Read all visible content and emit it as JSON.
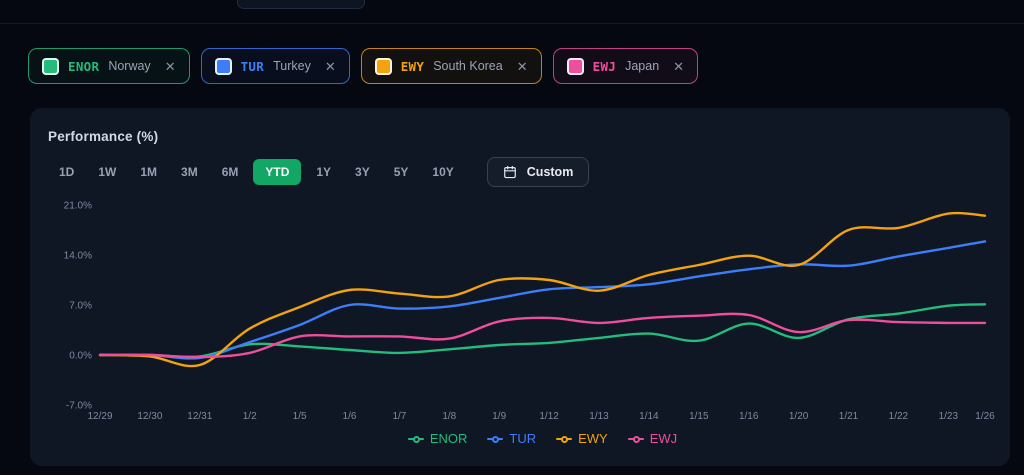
{
  "page": {
    "background": "#050810"
  },
  "topbar": {
    "partial_control_visible": true
  },
  "watchlist_chips": [
    {
      "ticker": "ENOR",
      "country": "Norway",
      "color": "#23BC7D",
      "close_label": "✕"
    },
    {
      "ticker": "TUR",
      "country": "Turkey",
      "color": "#3D7EF7",
      "close_label": "✕"
    },
    {
      "ticker": "EWY",
      "country": "South Korea",
      "color": "#F2A30D",
      "close_label": "✕"
    },
    {
      "ticker": "EWJ",
      "country": "Japan",
      "color": "#ED4F9C",
      "close_label": "✕"
    }
  ],
  "card": {
    "title": "Performance (%)",
    "ranges": [
      "1D",
      "1W",
      "1M",
      "3M",
      "6M",
      "YTD",
      "1Y",
      "3Y",
      "5Y",
      "10Y"
    ],
    "active_range": "YTD",
    "active_range_color": "#12A765",
    "custom_button": {
      "label": "Custom",
      "icon": "calendar-icon"
    }
  },
  "chart_data": {
    "type": "line",
    "title": "Performance (%)",
    "x": [
      "12/29",
      "12/30",
      "12/31",
      "1/2",
      "1/5",
      "1/6",
      "1/7",
      "1/8",
      "1/9",
      "1/12",
      "1/13",
      "1/14",
      "1/15",
      "1/16",
      "1/20",
      "1/21",
      "1/22",
      "1/23",
      "1/26"
    ],
    "series": [
      {
        "name": "ENOR",
        "color": "#23BC7D",
        "values": [
          0.0,
          0.0,
          -0.2,
          1.5,
          1.2,
          0.7,
          0.3,
          0.8,
          1.4,
          1.7,
          2.4,
          3.0,
          2.0,
          4.4,
          2.4,
          5.0,
          5.8,
          6.9,
          7.1
        ]
      },
      {
        "name": "TUR",
        "color": "#3D7EF7",
        "values": [
          0.0,
          0.0,
          -0.4,
          1.8,
          4.2,
          7.0,
          6.5,
          6.8,
          8.0,
          9.2,
          9.5,
          9.9,
          11.0,
          12.0,
          12.7,
          12.5,
          13.8,
          15.0,
          15.9
        ]
      },
      {
        "name": "EWY",
        "color": "#F2A30D",
        "values": [
          0.0,
          -0.2,
          -1.4,
          3.7,
          6.7,
          9.1,
          8.6,
          8.2,
          10.5,
          10.5,
          9.0,
          11.2,
          12.6,
          13.9,
          12.6,
          17.5,
          17.8,
          19.8,
          19.5
        ]
      },
      {
        "name": "EWJ",
        "color": "#ED4F9C",
        "values": [
          0.0,
          0.0,
          -0.3,
          0.3,
          2.6,
          2.6,
          2.6,
          2.3,
          4.7,
          5.2,
          4.5,
          5.2,
          5.5,
          5.6,
          3.2,
          4.9,
          4.6,
          4.5,
          4.5
        ]
      }
    ],
    "y_ticks": [
      "21.0%",
      "14.0%",
      "7.0%",
      "0.0%",
      "-7.0%"
    ],
    "y_tick_values": [
      21,
      14,
      7,
      0,
      -7
    ],
    "ylim": [
      -7,
      21
    ],
    "xlabel": "",
    "ylabel": "",
    "grid": false,
    "legend_position": "bottom"
  }
}
